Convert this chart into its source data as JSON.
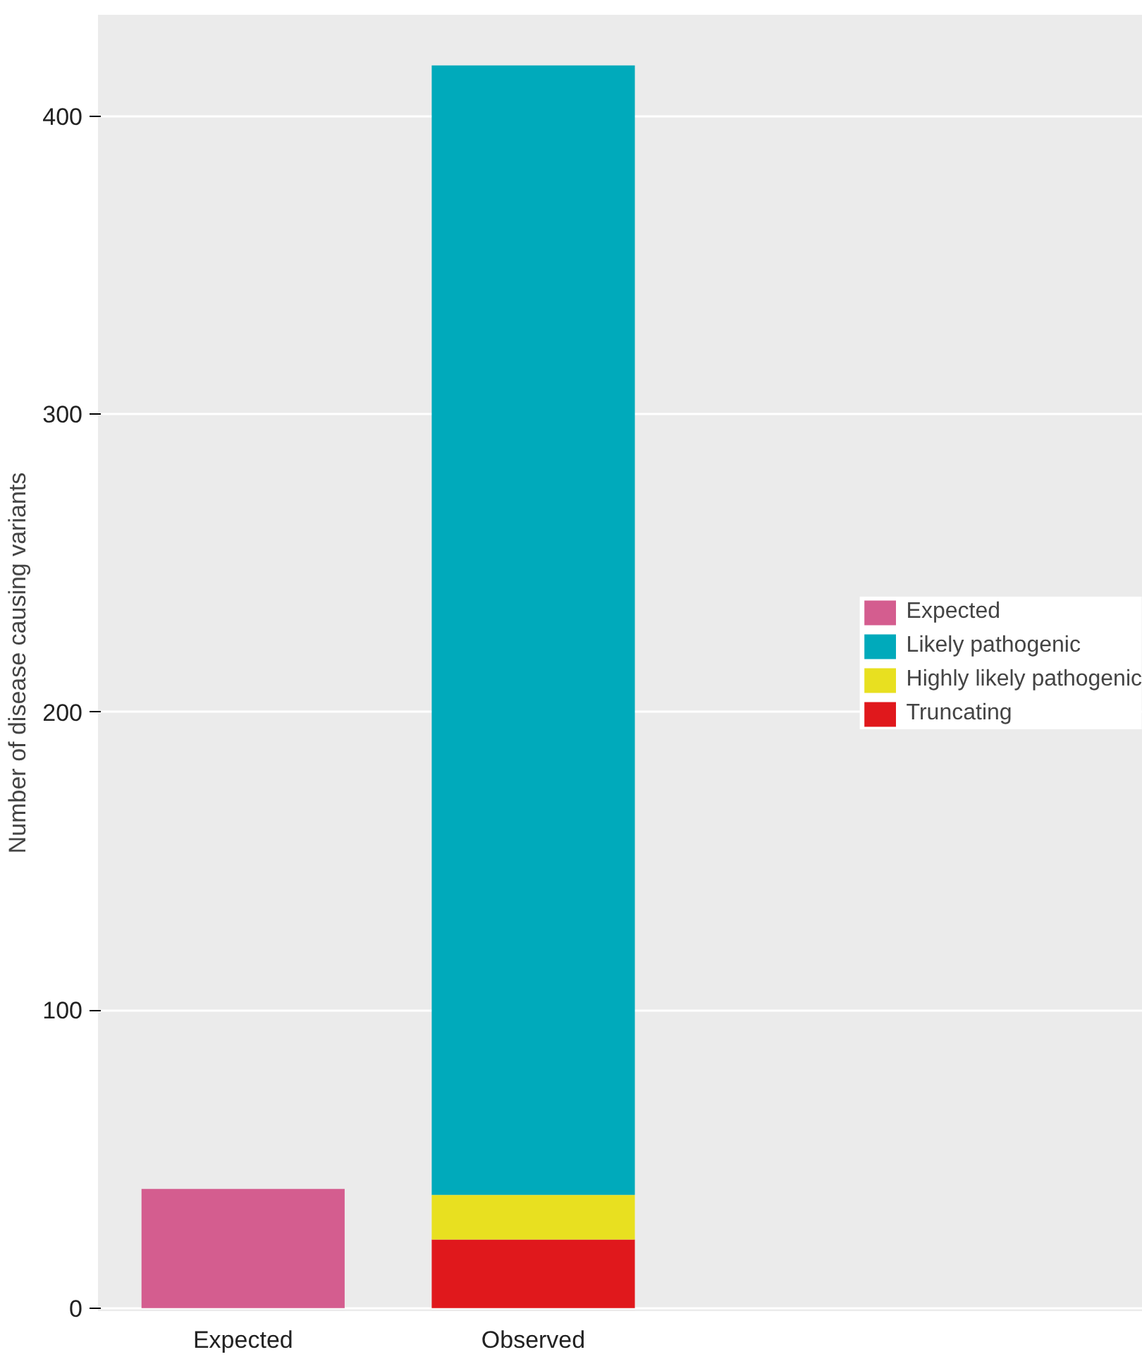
{
  "chart_data": {
    "type": "bar",
    "stacked": true,
    "categories": [
      "Expected",
      "Observed"
    ],
    "ylabel": "Number of disease causing variants",
    "series": [
      {
        "name": "Truncating",
        "color": "#e0181c",
        "values": [
          null,
          23
        ]
      },
      {
        "name": "Highly likely pathogenic",
        "color": "#e8e020",
        "values": [
          null,
          15
        ]
      },
      {
        "name": "Likely pathogenic",
        "color": "#00aabb",
        "values": [
          null,
          379
        ]
      },
      {
        "name": "Expected",
        "color": "#d45d8f",
        "values": [
          40,
          null
        ]
      }
    ],
    "ylim": [
      -1,
      434
    ],
    "yticks": [
      0,
      100,
      200,
      300,
      400
    ],
    "grid": "y",
    "legend": "right"
  }
}
